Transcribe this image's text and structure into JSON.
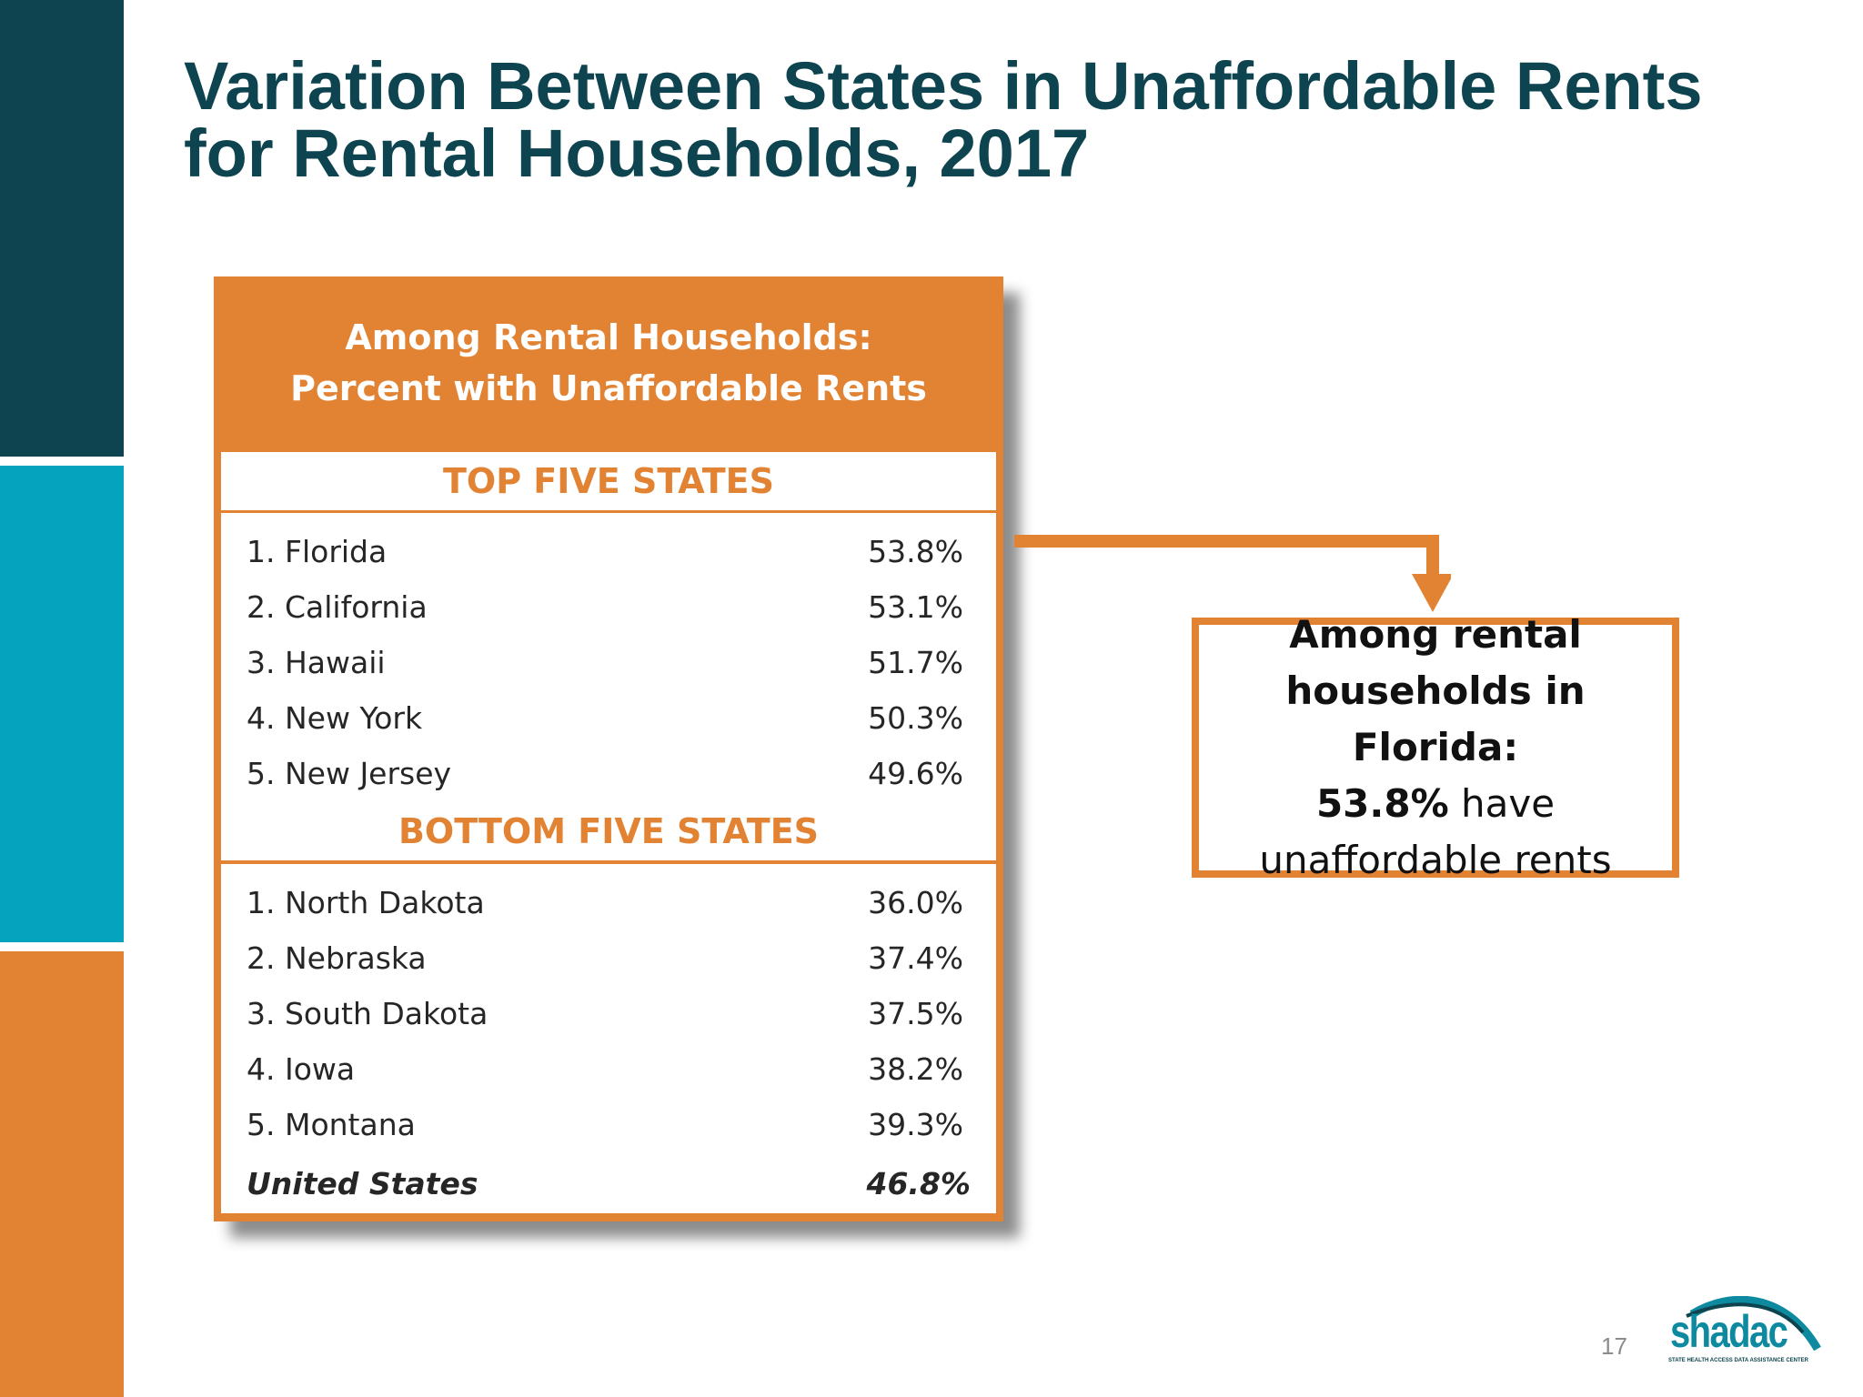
{
  "slide": {
    "title_line1": "Variation Between States in Unaffordable Rents",
    "title_line2": "for Rental Households, 2017",
    "page_number": "17"
  },
  "panel": {
    "header_line1": "Among Rental Households:",
    "header_line2": "Percent with Unaffordable Rents",
    "top_heading": "TOP FIVE STATES",
    "top_rows": [
      {
        "state": "1. Florida",
        "value": "53.8%"
      },
      {
        "state": "2. California",
        "value": "53.1%"
      },
      {
        "state": "3. Hawaii",
        "value": "51.7%"
      },
      {
        "state": "4. New York",
        "value": "50.3%"
      },
      {
        "state": "5. New Jersey",
        "value": "49.6%"
      }
    ],
    "bottom_heading": "BOTTOM FIVE STATES",
    "bottom_rows": [
      {
        "state": "1. North Dakota",
        "value": "36.0%"
      },
      {
        "state": "2. Nebraska",
        "value": "37.4%"
      },
      {
        "state": "3. South Dakota",
        "value": "37.5%"
      },
      {
        "state": "4. Iowa",
        "value": "38.2%"
      },
      {
        "state": "5. Montana",
        "value": "39.3%"
      }
    ],
    "total": {
      "state": "United States",
      "value": "46.8%"
    }
  },
  "callout": {
    "line1": "Among rental",
    "line2": "households in Florida:",
    "value": "53.8%",
    "line3_rest": " have",
    "line4": "unaffordable rents"
  },
  "logo": {
    "name": "shadac",
    "tagline": "STATE HEALTH ACCESS DATA ASSISTANCE CENTER"
  },
  "colors": {
    "dark_teal": "#0d444f",
    "teal": "#05a3bd",
    "orange": "#e28334"
  }
}
